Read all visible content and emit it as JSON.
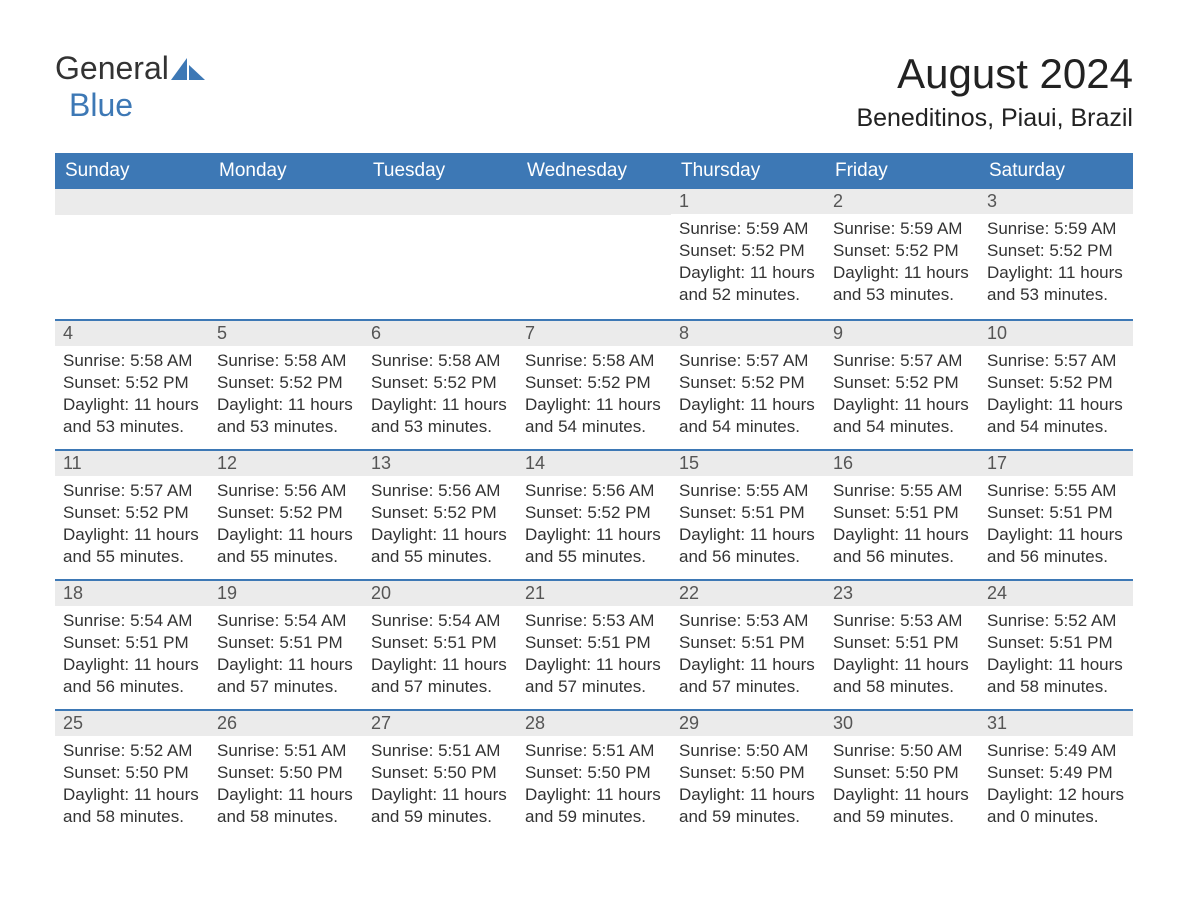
{
  "logo": {
    "general": "General",
    "blue": "Blue",
    "sail_color": "#3d78b5"
  },
  "title": "August 2024",
  "location": "Beneditinos, Piaui, Brazil",
  "colors": {
    "header_bg": "#3d78b5",
    "header_text": "#ffffff",
    "daynum_bg": "#ebebeb",
    "border": "#3d78b5",
    "body_bg": "#ffffff",
    "text": "#333333"
  },
  "font": {
    "family": "Arial",
    "title_size": 42,
    "location_size": 25,
    "th_size": 19,
    "cell_size": 17
  },
  "weekdays": [
    "Sunday",
    "Monday",
    "Tuesday",
    "Wednesday",
    "Thursday",
    "Friday",
    "Saturday"
  ],
  "weeks": [
    [
      null,
      null,
      null,
      null,
      {
        "n": "1",
        "sunrise": "Sunrise: 5:59 AM",
        "sunset": "Sunset: 5:52 PM",
        "dl1": "Daylight: 11 hours",
        "dl2": "and 52 minutes."
      },
      {
        "n": "2",
        "sunrise": "Sunrise: 5:59 AM",
        "sunset": "Sunset: 5:52 PM",
        "dl1": "Daylight: 11 hours",
        "dl2": "and 53 minutes."
      },
      {
        "n": "3",
        "sunrise": "Sunrise: 5:59 AM",
        "sunset": "Sunset: 5:52 PM",
        "dl1": "Daylight: 11 hours",
        "dl2": "and 53 minutes."
      }
    ],
    [
      {
        "n": "4",
        "sunrise": "Sunrise: 5:58 AM",
        "sunset": "Sunset: 5:52 PM",
        "dl1": "Daylight: 11 hours",
        "dl2": "and 53 minutes."
      },
      {
        "n": "5",
        "sunrise": "Sunrise: 5:58 AM",
        "sunset": "Sunset: 5:52 PM",
        "dl1": "Daylight: 11 hours",
        "dl2": "and 53 minutes."
      },
      {
        "n": "6",
        "sunrise": "Sunrise: 5:58 AM",
        "sunset": "Sunset: 5:52 PM",
        "dl1": "Daylight: 11 hours",
        "dl2": "and 53 minutes."
      },
      {
        "n": "7",
        "sunrise": "Sunrise: 5:58 AM",
        "sunset": "Sunset: 5:52 PM",
        "dl1": "Daylight: 11 hours",
        "dl2": "and 54 minutes."
      },
      {
        "n": "8",
        "sunrise": "Sunrise: 5:57 AM",
        "sunset": "Sunset: 5:52 PM",
        "dl1": "Daylight: 11 hours",
        "dl2": "and 54 minutes."
      },
      {
        "n": "9",
        "sunrise": "Sunrise: 5:57 AM",
        "sunset": "Sunset: 5:52 PM",
        "dl1": "Daylight: 11 hours",
        "dl2": "and 54 minutes."
      },
      {
        "n": "10",
        "sunrise": "Sunrise: 5:57 AM",
        "sunset": "Sunset: 5:52 PM",
        "dl1": "Daylight: 11 hours",
        "dl2": "and 54 minutes."
      }
    ],
    [
      {
        "n": "11",
        "sunrise": "Sunrise: 5:57 AM",
        "sunset": "Sunset: 5:52 PM",
        "dl1": "Daylight: 11 hours",
        "dl2": "and 55 minutes."
      },
      {
        "n": "12",
        "sunrise": "Sunrise: 5:56 AM",
        "sunset": "Sunset: 5:52 PM",
        "dl1": "Daylight: 11 hours",
        "dl2": "and 55 minutes."
      },
      {
        "n": "13",
        "sunrise": "Sunrise: 5:56 AM",
        "sunset": "Sunset: 5:52 PM",
        "dl1": "Daylight: 11 hours",
        "dl2": "and 55 minutes."
      },
      {
        "n": "14",
        "sunrise": "Sunrise: 5:56 AM",
        "sunset": "Sunset: 5:52 PM",
        "dl1": "Daylight: 11 hours",
        "dl2": "and 55 minutes."
      },
      {
        "n": "15",
        "sunrise": "Sunrise: 5:55 AM",
        "sunset": "Sunset: 5:51 PM",
        "dl1": "Daylight: 11 hours",
        "dl2": "and 56 minutes."
      },
      {
        "n": "16",
        "sunrise": "Sunrise: 5:55 AM",
        "sunset": "Sunset: 5:51 PM",
        "dl1": "Daylight: 11 hours",
        "dl2": "and 56 minutes."
      },
      {
        "n": "17",
        "sunrise": "Sunrise: 5:55 AM",
        "sunset": "Sunset: 5:51 PM",
        "dl1": "Daylight: 11 hours",
        "dl2": "and 56 minutes."
      }
    ],
    [
      {
        "n": "18",
        "sunrise": "Sunrise: 5:54 AM",
        "sunset": "Sunset: 5:51 PM",
        "dl1": "Daylight: 11 hours",
        "dl2": "and 56 minutes."
      },
      {
        "n": "19",
        "sunrise": "Sunrise: 5:54 AM",
        "sunset": "Sunset: 5:51 PM",
        "dl1": "Daylight: 11 hours",
        "dl2": "and 57 minutes."
      },
      {
        "n": "20",
        "sunrise": "Sunrise: 5:54 AM",
        "sunset": "Sunset: 5:51 PM",
        "dl1": "Daylight: 11 hours",
        "dl2": "and 57 minutes."
      },
      {
        "n": "21",
        "sunrise": "Sunrise: 5:53 AM",
        "sunset": "Sunset: 5:51 PM",
        "dl1": "Daylight: 11 hours",
        "dl2": "and 57 minutes."
      },
      {
        "n": "22",
        "sunrise": "Sunrise: 5:53 AM",
        "sunset": "Sunset: 5:51 PM",
        "dl1": "Daylight: 11 hours",
        "dl2": "and 57 minutes."
      },
      {
        "n": "23",
        "sunrise": "Sunrise: 5:53 AM",
        "sunset": "Sunset: 5:51 PM",
        "dl1": "Daylight: 11 hours",
        "dl2": "and 58 minutes."
      },
      {
        "n": "24",
        "sunrise": "Sunrise: 5:52 AM",
        "sunset": "Sunset: 5:51 PM",
        "dl1": "Daylight: 11 hours",
        "dl2": "and 58 minutes."
      }
    ],
    [
      {
        "n": "25",
        "sunrise": "Sunrise: 5:52 AM",
        "sunset": "Sunset: 5:50 PM",
        "dl1": "Daylight: 11 hours",
        "dl2": "and 58 minutes."
      },
      {
        "n": "26",
        "sunrise": "Sunrise: 5:51 AM",
        "sunset": "Sunset: 5:50 PM",
        "dl1": "Daylight: 11 hours",
        "dl2": "and 58 minutes."
      },
      {
        "n": "27",
        "sunrise": "Sunrise: 5:51 AM",
        "sunset": "Sunset: 5:50 PM",
        "dl1": "Daylight: 11 hours",
        "dl2": "and 59 minutes."
      },
      {
        "n": "28",
        "sunrise": "Sunrise: 5:51 AM",
        "sunset": "Sunset: 5:50 PM",
        "dl1": "Daylight: 11 hours",
        "dl2": "and 59 minutes."
      },
      {
        "n": "29",
        "sunrise": "Sunrise: 5:50 AM",
        "sunset": "Sunset: 5:50 PM",
        "dl1": "Daylight: 11 hours",
        "dl2": "and 59 minutes."
      },
      {
        "n": "30",
        "sunrise": "Sunrise: 5:50 AM",
        "sunset": "Sunset: 5:50 PM",
        "dl1": "Daylight: 11 hours",
        "dl2": "and 59 minutes."
      },
      {
        "n": "31",
        "sunrise": "Sunrise: 5:49 AM",
        "sunset": "Sunset: 5:49 PM",
        "dl1": "Daylight: 12 hours",
        "dl2": "and 0 minutes."
      }
    ]
  ]
}
